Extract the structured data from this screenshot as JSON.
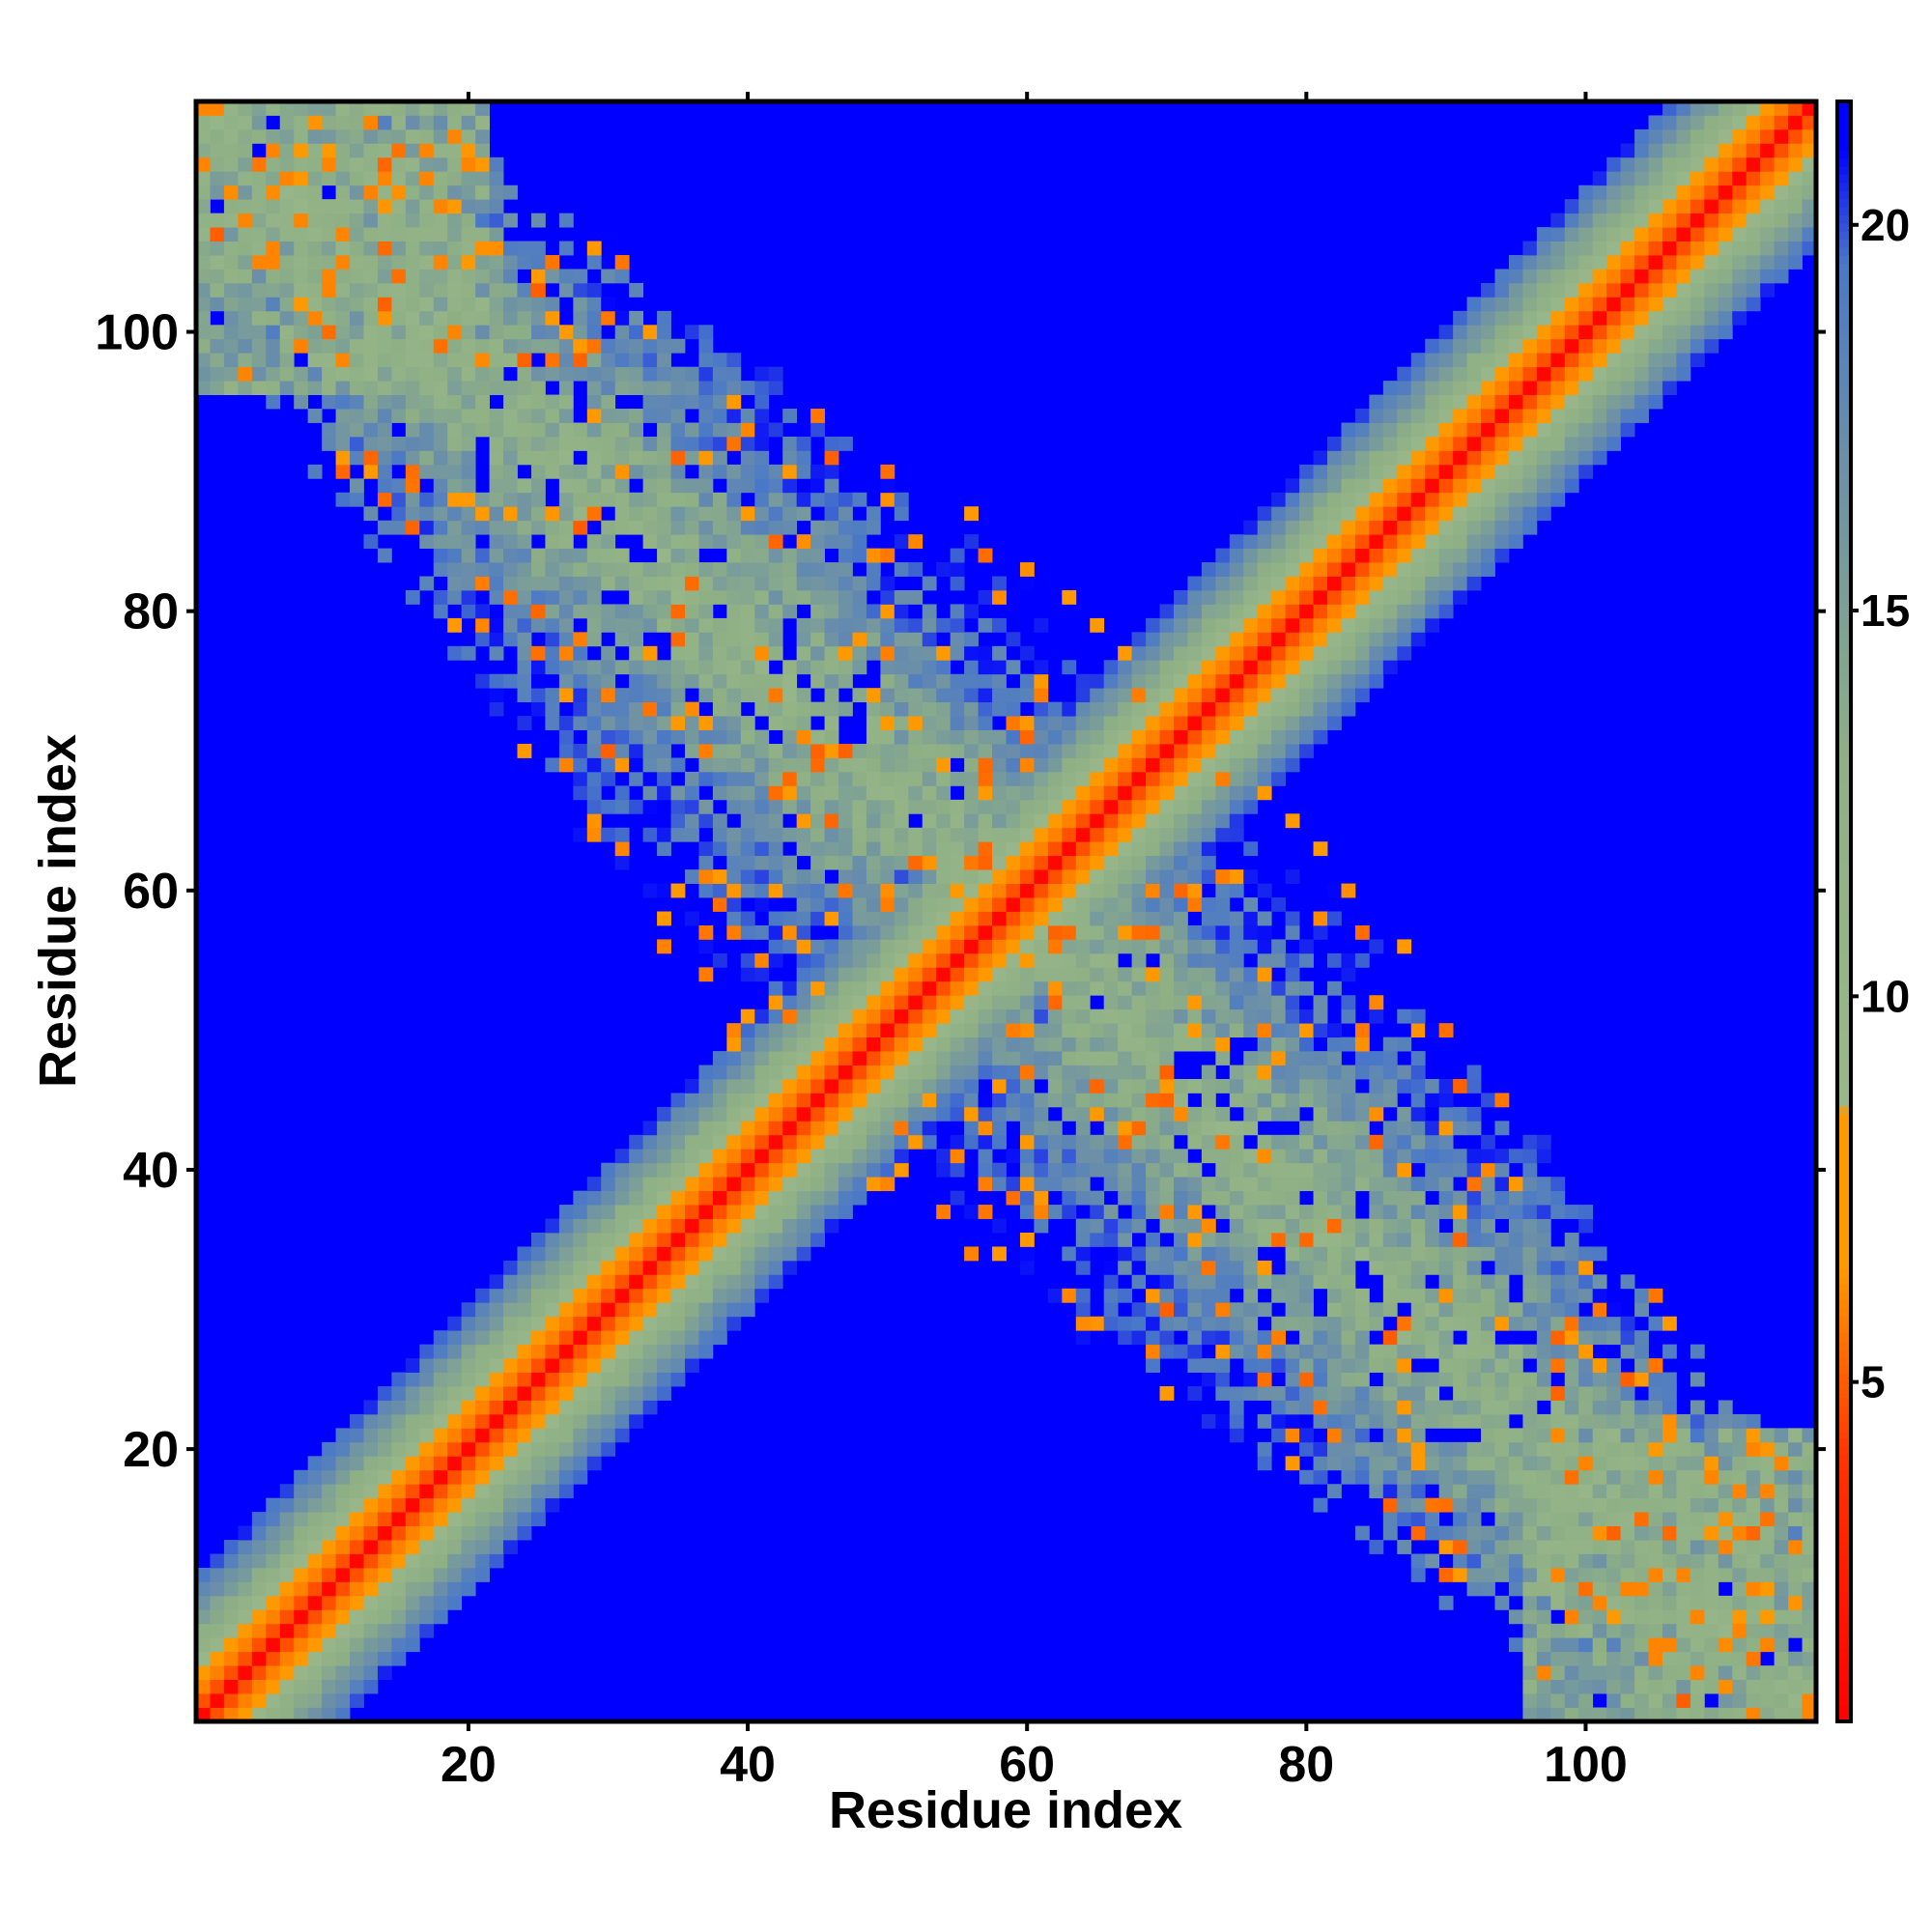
{
  "chart_data": {
    "type": "heatmap",
    "title": "",
    "xlabel": "Residue index",
    "ylabel": "Residue index",
    "n_residues": 116,
    "xlim": [
      0.5,
      116.5
    ],
    "ylim": [
      0.5,
      116.5
    ],
    "x_ticks": [
      20,
      40,
      60,
      80,
      100
    ],
    "y_ticks": [
      20,
      40,
      60,
      80,
      100
    ],
    "colorbar": {
      "ticks": [
        5,
        10,
        15,
        20
      ],
      "range": [
        0.6,
        21.6
      ],
      "stops": [
        {
          "value": 0.6,
          "color": "#ff0000"
        },
        {
          "value": 4.0,
          "color": "#ff3300"
        },
        {
          "value": 6.5,
          "color": "#ff9900"
        },
        {
          "value": 8.5,
          "color": "#ff9900"
        },
        {
          "value": 8.6,
          "color": "#99b78a"
        },
        {
          "value": 13.0,
          "color": "#8fb085"
        },
        {
          "value": 17.0,
          "color": "#6b8fa8"
        },
        {
          "value": 19.5,
          "color": "#4a78c8"
        },
        {
          "value": 21.0,
          "color": "#0000ff"
        },
        {
          "value": 21.6,
          "color": "#0000ff"
        }
      ]
    },
    "value_scale": "Distance matrix, values ~1 (diagonal) to >20 (far)",
    "structure": {
      "diagonal": "i = j, value ~1",
      "antidiagonal_contacts": "contact band where i + j ≈ 117, values 5–17",
      "background": "blue, value ≥ 21"
    },
    "palette": {
      "red": "#ff0000",
      "orange": "#ff9900",
      "green": "#99b78a",
      "steel": "#6b8fa8",
      "blue": "#0000ff"
    }
  }
}
